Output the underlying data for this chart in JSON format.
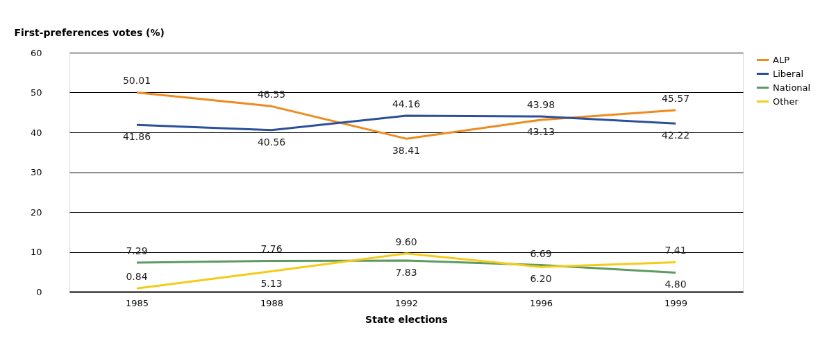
{
  "chart_data": {
    "type": "line",
    "ylabel": "First-preferences votes (%)",
    "xlabel": "State elections",
    "categories": [
      "1985",
      "1988",
      "1992",
      "1996",
      "1999"
    ],
    "series": [
      {
        "name": "ALP",
        "color": "#ef8a1e",
        "values": [
          50.01,
          46.55,
          38.41,
          43.13,
          45.57
        ],
        "value_labels": [
          "50.01",
          "46.55",
          "38.41",
          "43.13",
          "45.57"
        ]
      },
      {
        "name": "Liberal",
        "color": "#2b4f9b",
        "values": [
          41.86,
          40.56,
          44.16,
          43.98,
          42.22
        ],
        "value_labels": [
          "41.86",
          "40.56",
          "44.16",
          "43.98",
          "42.22"
        ]
      },
      {
        "name": "National",
        "color": "#5c9a62",
        "values": [
          7.29,
          7.76,
          7.83,
          6.69,
          4.8
        ],
        "value_labels": [
          "7.29",
          "7.76",
          "7.83",
          "6.69",
          "4.80"
        ]
      },
      {
        "name": "Other",
        "color": "#f4cc17",
        "values": [
          0.84,
          5.13,
          9.6,
          6.2,
          7.41
        ],
        "value_labels": [
          "0.84",
          "5.13",
          "9.60",
          "6.20",
          "7.41"
        ]
      }
    ],
    "ylim": [
      0,
      60
    ],
    "yticks": [
      0,
      10,
      20,
      30,
      40,
      50,
      60
    ],
    "grid": "y",
    "legend": "right",
    "marker": "none",
    "line_style": "solid"
  }
}
